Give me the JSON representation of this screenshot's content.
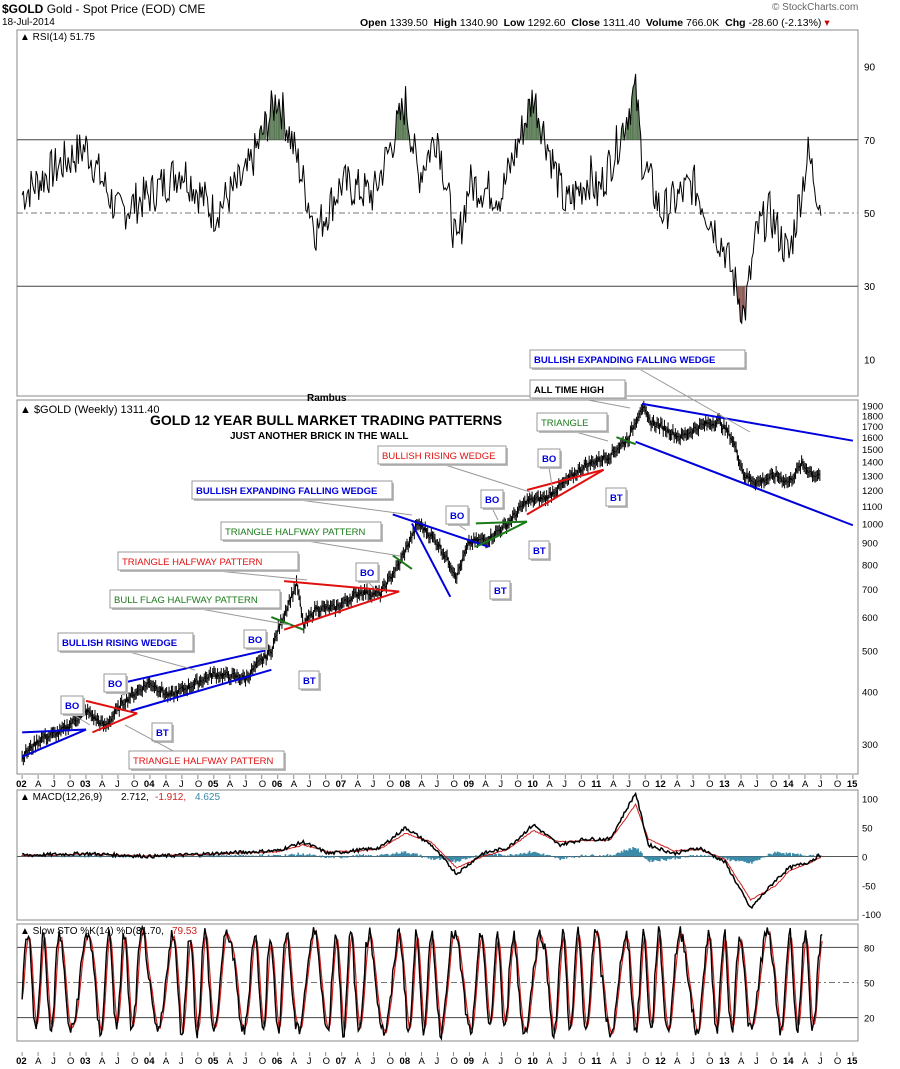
{
  "header": {
    "symbol": "$GOLD",
    "name": "Gold - Spot Price (EOD)",
    "exchange": "CME",
    "date": "18-Jul-2014",
    "open_label": "Open",
    "open": "1339.50",
    "high_label": "High",
    "high": "1340.90",
    "low_label": "Low",
    "low": "1292.60",
    "close_label": "Close",
    "close": "1311.40",
    "volume_label": "Volume",
    "volume": "766.0K",
    "chg_label": "Chg",
    "chg": "-28.60 (-2.13%)",
    "watermark": "© StockCharts.com"
  },
  "chart_data": [
    {
      "type": "line",
      "name": "rsi",
      "legend": "RSI(14) 51.75",
      "ylim": [
        0,
        100
      ],
      "yticks": [
        90,
        70,
        50,
        30,
        10
      ],
      "lines": [
        70,
        50,
        30
      ],
      "x": [
        2002.0,
        2002.5,
        2003.0,
        2003.5,
        2004.0,
        2004.5,
        2005.0,
        2005.5,
        2006.0,
        2006.3,
        2006.6,
        2007.0,
        2007.5,
        2008.0,
        2008.2,
        2008.5,
        2008.8,
        2009.0,
        2009.5,
        2010.0,
        2010.5,
        2010.9,
        2011.0,
        2011.3,
        2011.6,
        2011.7,
        2012.0,
        2012.5,
        2013.0,
        2013.3,
        2013.5,
        2013.7,
        2014.0,
        2014.3,
        2014.5
      ],
      "values": [
        55,
        62,
        68,
        50,
        55,
        62,
        50,
        60,
        82,
        65,
        45,
        58,
        55,
        80,
        60,
        72,
        40,
        58,
        55,
        82,
        52,
        60,
        55,
        68,
        84,
        65,
        50,
        58,
        40,
        22,
        45,
        50,
        38,
        66,
        52
      ]
    },
    {
      "type": "line",
      "name": "price",
      "legend": "$GOLD (Weekly) 1311.40",
      "yscale": "log",
      "ylim": [
        255,
        1960
      ],
      "yticks": [
        1900,
        1800,
        1700,
        1600,
        1500,
        1400,
        1300,
        1200,
        1100,
        1000,
        900,
        800,
        700,
        600,
        500,
        400,
        300
      ],
      "x": [
        2002.0,
        2002.3,
        2002.6,
        2003.0,
        2003.3,
        2003.6,
        2004.0,
        2004.3,
        2004.6,
        2005.0,
        2005.5,
        2005.9,
        2006.3,
        2006.4,
        2006.6,
        2006.9,
        2007.3,
        2007.6,
        2007.9,
        2008.2,
        2008.5,
        2008.8,
        2009.0,
        2009.3,
        2009.6,
        2009.9,
        2010.2,
        2010.5,
        2010.8,
        2011.2,
        2011.5,
        2011.7,
        2011.8,
        2012.0,
        2012.3,
        2012.6,
        2012.9,
        2013.1,
        2013.3,
        2013.5,
        2013.8,
        2014.0,
        2014.2,
        2014.4,
        2014.5
      ],
      "values": [
        280,
        310,
        320,
        360,
        330,
        380,
        420,
        390,
        410,
        440,
        430,
        500,
        720,
        570,
        630,
        630,
        690,
        680,
        800,
        1000,
        900,
        750,
        900,
        920,
        1000,
        1130,
        1150,
        1250,
        1370,
        1450,
        1600,
        1900,
        1750,
        1700,
        1600,
        1700,
        1750,
        1600,
        1300,
        1250,
        1300,
        1250,
        1380,
        1300,
        1311
      ],
      "title": "GOLD 12 YEAR BULL MARKET TRADING PATTERNS",
      "subtitle": "JUST ANOTHER BRICK IN THE WALL",
      "author": "Rambus",
      "trendlines": [
        {
          "color": "blue",
          "points": [
            [
              2002.0,
              320
            ],
            [
              2003.0,
              325
            ]
          ]
        },
        {
          "color": "blue",
          "points": [
            [
              2002.0,
              280
            ],
            [
              2003.0,
              325
            ]
          ]
        },
        {
          "color": "red",
          "points": [
            [
              2003.0,
              380
            ],
            [
              2003.8,
              355
            ]
          ]
        },
        {
          "color": "red",
          "points": [
            [
              2003.1,
              320
            ],
            [
              2003.8,
              355
            ]
          ]
        },
        {
          "color": "blue",
          "points": [
            [
              2003.6,
              420
            ],
            [
              2005.8,
              500
            ]
          ]
        },
        {
          "color": "blue",
          "points": [
            [
              2003.7,
              360
            ],
            [
              2005.9,
              450
            ]
          ]
        },
        {
          "color": "green",
          "points": [
            [
              2005.9,
              600
            ],
            [
              2006.4,
              560
            ]
          ]
        },
        {
          "color": "red",
          "points": [
            [
              2006.1,
              730
            ],
            [
              2007.9,
              690
            ]
          ]
        },
        {
          "color": "red",
          "points": [
            [
              2006.1,
              560
            ],
            [
              2007.9,
              690
            ]
          ]
        },
        {
          "color": "green",
          "points": [
            [
              2007.8,
              840
            ],
            [
              2008.1,
              780
            ]
          ]
        },
        {
          "color": "blue",
          "points": [
            [
              2007.8,
              1050
            ],
            [
              2009.3,
              880
            ]
          ]
        },
        {
          "color": "blue",
          "points": [
            [
              2008.1,
              1000
            ],
            [
              2008.7,
              670
            ]
          ]
        },
        {
          "color": "green",
          "points": [
            [
              2009.1,
              1000
            ],
            [
              2009.9,
              1010
            ]
          ]
        },
        {
          "color": "green",
          "points": [
            [
              2009.1,
              880
            ],
            [
              2009.9,
              1010
            ]
          ]
        },
        {
          "color": "red",
          "points": [
            [
              2009.9,
              1200
            ],
            [
              2011.1,
              1340
            ]
          ]
        },
        {
          "color": "red",
          "points": [
            [
              2009.9,
              1050
            ],
            [
              2011.1,
              1340
            ]
          ]
        },
        {
          "color": "green",
          "points": [
            [
              2011.3,
              1600
            ],
            [
              2011.6,
              1540
            ]
          ]
        },
        {
          "color": "blue",
          "points": [
            [
              2011.7,
              1920
            ],
            [
              2015.0,
              1570
            ]
          ]
        },
        {
          "color": "blue",
          "points": [
            [
              2011.6,
              1560
            ],
            [
              2015.0,
              990
            ]
          ]
        }
      ],
      "annotations": [
        {
          "text": "BULLISH EXPANDING FALLING WEDGE",
          "color": "blue"
        },
        {
          "text": "ALL TIME HIGH",
          "color": "black"
        },
        {
          "text": "TRIANGLE",
          "color": "green"
        },
        {
          "text": "BULLISH RISING WEDGE",
          "color": "red"
        },
        {
          "text": "BO",
          "color": "blue"
        },
        {
          "text": "BT",
          "color": "blue"
        },
        {
          "text": "BULLISH EXPANDING FALLING WEDGE",
          "color": "blue"
        },
        {
          "text": "BO",
          "color": "blue"
        },
        {
          "text": "BO",
          "color": "blue"
        },
        {
          "text": "BT",
          "color": "blue"
        },
        {
          "text": "BT",
          "color": "blue"
        },
        {
          "text": "TRIANGLE HALFWAY PATTERN",
          "color": "green"
        },
        {
          "text": "TRIANGLE HALFWAY PATTERN",
          "color": "red"
        },
        {
          "text": "BO",
          "color": "blue"
        },
        {
          "text": "BULL FLAG HALFWAY PATTERN",
          "color": "green"
        },
        {
          "text": "BO",
          "color": "blue"
        },
        {
          "text": "BT",
          "color": "blue"
        },
        {
          "text": "BULLISH RISING WEDGE",
          "color": "blue"
        },
        {
          "text": "BO",
          "color": "blue"
        },
        {
          "text": "BO",
          "color": "blue"
        },
        {
          "text": "BT",
          "color": "blue"
        },
        {
          "text": "TRIANGLE HALFWAY PATTERN",
          "color": "red"
        }
      ]
    },
    {
      "type": "line",
      "name": "macd",
      "legend_label": "MACD(12,26,9)",
      "legend_values": [
        "2.712",
        "-1.912",
        "4.625"
      ],
      "ylim": [
        -110,
        115
      ],
      "yticks": [
        100,
        50,
        0,
        -50,
        -100
      ],
      "x": [
        2002.0,
        2003.0,
        2004.0,
        2005.0,
        2006.0,
        2006.4,
        2006.8,
        2007.2,
        2007.6,
        2008.0,
        2008.4,
        2008.8,
        2009.2,
        2009.6,
        2010.0,
        2010.4,
        2010.8,
        2011.2,
        2011.6,
        2011.8,
        2012.2,
        2012.6,
        2013.0,
        2013.4,
        2013.8,
        2014.0,
        2014.3,
        2014.5
      ],
      "series": [
        {
          "name": "MACD",
          "values": [
            2,
            5,
            0,
            5,
            10,
            25,
            5,
            10,
            15,
            50,
            20,
            -30,
            5,
            15,
            55,
            20,
            30,
            30,
            110,
            20,
            5,
            15,
            -10,
            -90,
            -40,
            -20,
            -10,
            3
          ]
        },
        {
          "name": "Signal",
          "values": [
            1,
            4,
            1,
            4,
            8,
            20,
            8,
            9,
            13,
            40,
            25,
            -20,
            0,
            12,
            45,
            25,
            28,
            28,
            90,
            30,
            10,
            12,
            -5,
            -75,
            -50,
            -25,
            -12,
            -2
          ]
        }
      ]
    },
    {
      "type": "line",
      "name": "stochastic",
      "legend_label": "Slow STO %K(14) %D(3)",
      "legend_values": [
        "81.70",
        "79.53"
      ],
      "ylim": [
        0,
        100
      ],
      "yticks": [
        80,
        50,
        20
      ],
      "x": [
        2002.0,
        2002.3,
        2002.6,
        2003.0,
        2003.3,
        2003.6,
        2004.0,
        2004.3,
        2004.6,
        2005.0,
        2005.3,
        2005.6,
        2006.0,
        2006.3,
        2006.6,
        2007.0,
        2007.3,
        2007.6,
        2008.0,
        2008.3,
        2008.6,
        2009.0,
        2009.3,
        2009.6,
        2010.0,
        2010.3,
        2010.6,
        2011.0,
        2011.3,
        2011.6,
        2012.0,
        2012.3,
        2012.6,
        2013.0,
        2013.3,
        2013.6,
        2014.0,
        2014.2,
        2014.4,
        2014.5
      ],
      "series": [
        {
          "name": "%K",
          "values": [
            50,
            85,
            20,
            90,
            15,
            85,
            20,
            90,
            30,
            80,
            15,
            90,
            25,
            90,
            15,
            85,
            20,
            95,
            30,
            90,
            10,
            85,
            25,
            95,
            20,
            90,
            15,
            95,
            25,
            92,
            20,
            85,
            15,
            80,
            10,
            70,
            20,
            85,
            12,
            82
          ]
        },
        {
          "name": "%D",
          "values": [
            50,
            80,
            25,
            85,
            20,
            80,
            25,
            85,
            35,
            75,
            20,
            85,
            30,
            85,
            20,
            80,
            25,
            90,
            35,
            85,
            15,
            80,
            30,
            90,
            25,
            85,
            20,
            90,
            30,
            88,
            25,
            80,
            20,
            75,
            15,
            65,
            25,
            80,
            18,
            80
          ]
        }
      ]
    }
  ],
  "xaxis": {
    "labels": [
      "02",
      "A",
      "J",
      "O",
      "03",
      "A",
      "J",
      "O",
      "04",
      "A",
      "J",
      "O",
      "05",
      "A",
      "J",
      "O",
      "06",
      "A",
      "J",
      "O",
      "07",
      "A",
      "J",
      "O",
      "08",
      "A",
      "J",
      "O",
      "09",
      "A",
      "J",
      "O",
      "10",
      "A",
      "J",
      "O",
      "11",
      "A",
      "J",
      "O",
      "12",
      "A",
      "J",
      "O",
      "13",
      "A",
      "J",
      "O",
      "14",
      "A",
      "J",
      "O",
      "15"
    ]
  },
  "colors": {
    "rsi_fill_up": "#5a7a55",
    "rsi_fill_down": "#8a5a55",
    "macd_hist": "#3a8aa8",
    "macd_signal": "#d02020",
    "blue": "#0000dd",
    "red": "#e01010",
    "green": "#1a7a1a"
  }
}
